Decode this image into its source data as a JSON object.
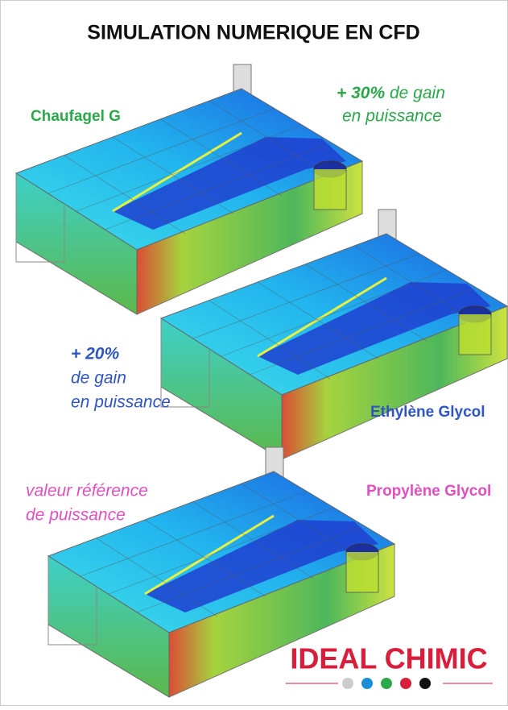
{
  "title": "SIMULATION NUMERIQUE EN CFD",
  "fluids": [
    {
      "name": "Chaufagel G",
      "gain_emphasis": "+ 30%",
      "gain_rest": "de gain",
      "gain_line2": "en puissance"
    },
    {
      "name": "Ethylène Glycol",
      "gain_emphasis": "+ 20%",
      "gain_rest": "de gain",
      "gain_line2": "en puissance"
    },
    {
      "name": "Propylène Glycol",
      "gain_rest": "valeur référence",
      "gain_line2": "de puissance"
    }
  ],
  "logo": "IDEAL CHIMIC"
}
